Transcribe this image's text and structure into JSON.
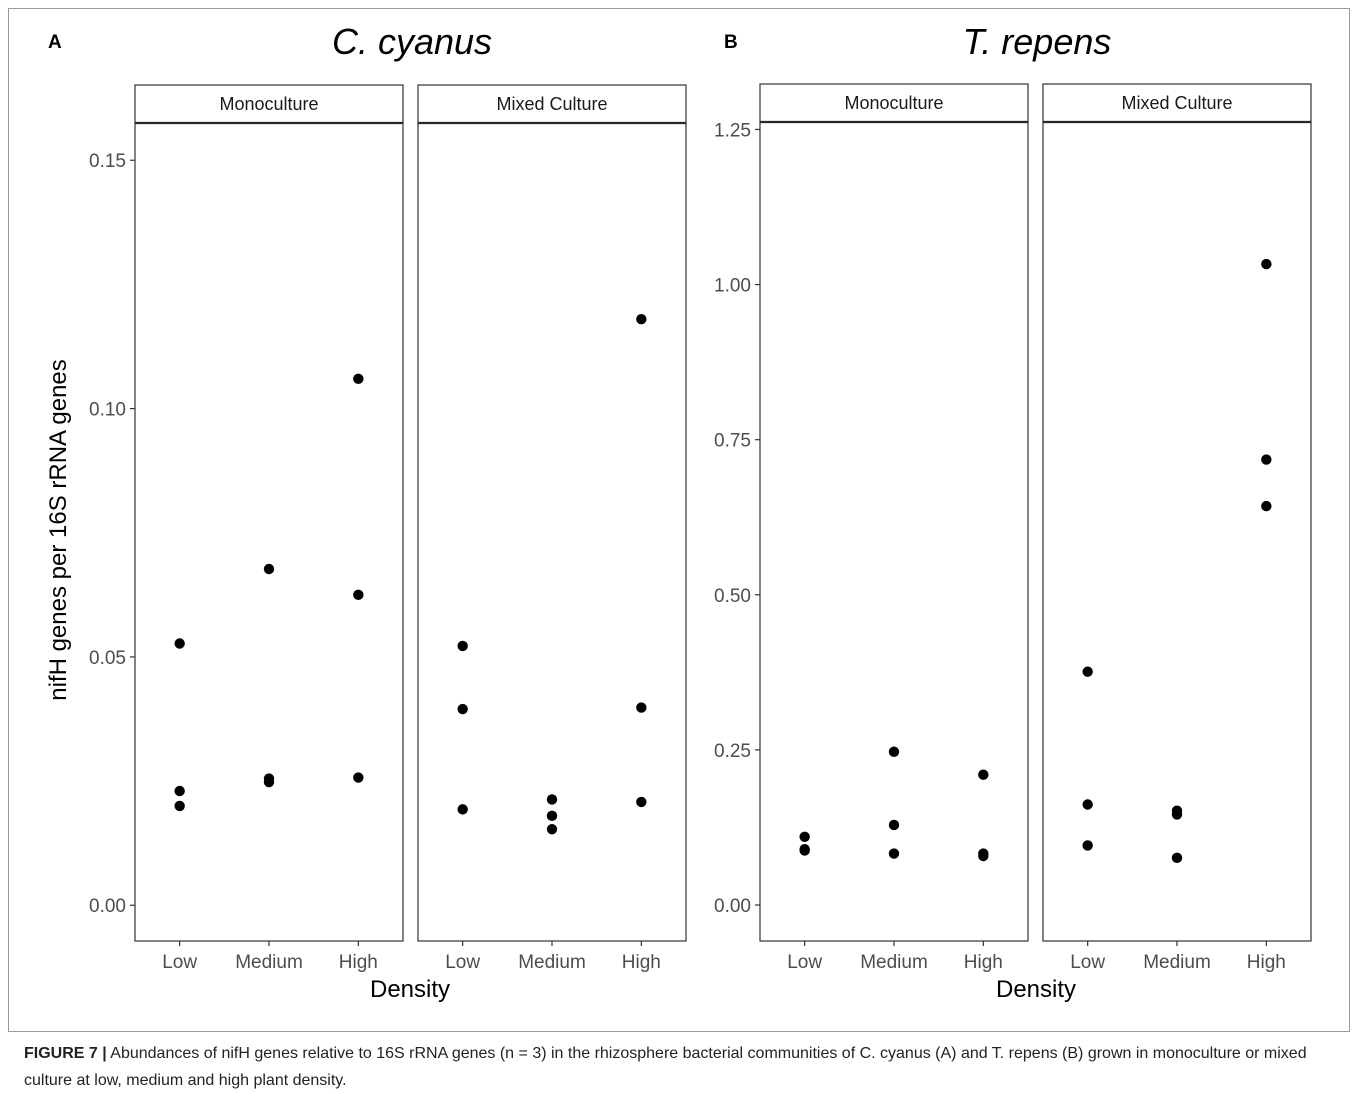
{
  "figure": {
    "caption": {
      "label": "FIGURE 7 |",
      "text": "Abundances of nifH genes relative to 16S rRNA genes (n = 3) in the rhizosphere bacterial communities of C. cyanus (A) and T. repens (B) grown in monoculture or mixed culture at low, medium and high plant density."
    },
    "colors": {
      "point": "#000000",
      "axis": "#333333",
      "frame": "#9a9a9a"
    }
  },
  "chart_data": [
    {
      "type": "scatter",
      "panel_label": "A",
      "title": "C. cyanus",
      "xlabel": "Density",
      "ylabel": "nifH genes per 16S rRNA genes",
      "ylim": [
        -0.0072,
        0.1575
      ],
      "yticks": [
        0.0,
        0.05,
        0.1,
        0.15
      ],
      "ytick_labels": [
        "0.00",
        "0.05",
        "0.10",
        "0.15"
      ],
      "categories": [
        "Low",
        "Medium",
        "High"
      ],
      "grid": false,
      "facets": [
        {
          "name": "Monoculture",
          "points": [
            {
              "x": "Low",
              "y": 0.0527
            },
            {
              "x": "Low",
              "y": 0.023
            },
            {
              "x": "Low",
              "y": 0.02
            },
            {
              "x": "Medium",
              "y": 0.0677
            },
            {
              "x": "Medium",
              "y": 0.0255
            },
            {
              "x": "Medium",
              "y": 0.0248
            },
            {
              "x": "High",
              "y": 0.106
            },
            {
              "x": "High",
              "y": 0.0625
            },
            {
              "x": "High",
              "y": 0.0257
            }
          ]
        },
        {
          "name": "Mixed Culture",
          "points": [
            {
              "x": "Low",
              "y": 0.0522
            },
            {
              "x": "Low",
              "y": 0.0395
            },
            {
              "x": "Low",
              "y": 0.0193
            },
            {
              "x": "Medium",
              "y": 0.0213
            },
            {
              "x": "Medium",
              "y": 0.018
            },
            {
              "x": "Medium",
              "y": 0.0153
            },
            {
              "x": "High",
              "y": 0.118
            },
            {
              "x": "High",
              "y": 0.0398
            },
            {
              "x": "High",
              "y": 0.0208
            }
          ]
        }
      ]
    },
    {
      "type": "scatter",
      "panel_label": "B",
      "title": "T. repens",
      "xlabel": "Density",
      "ylabel": "",
      "ylim": [
        -0.058,
        1.262
      ],
      "yticks": [
        0.0,
        0.25,
        0.5,
        0.75,
        1.0,
        1.25
      ],
      "ytick_labels": [
        "0.00",
        "0.25",
        "0.50",
        "0.75",
        "1.00",
        "1.25"
      ],
      "categories": [
        "Low",
        "Medium",
        "High"
      ],
      "grid": false,
      "facets": [
        {
          "name": "Monoculture",
          "points": [
            {
              "x": "Low",
              "y": 0.11
            },
            {
              "x": "Low",
              "y": 0.09
            },
            {
              "x": "Low",
              "y": 0.088
            },
            {
              "x": "Medium",
              "y": 0.247
            },
            {
              "x": "Medium",
              "y": 0.129
            },
            {
              "x": "Medium",
              "y": 0.083
            },
            {
              "x": "High",
              "y": 0.21
            },
            {
              "x": "High",
              "y": 0.083
            },
            {
              "x": "High",
              "y": 0.079
            }
          ]
        },
        {
          "name": "Mixed Culture",
          "points": [
            {
              "x": "Low",
              "y": 0.376
            },
            {
              "x": "Low",
              "y": 0.162
            },
            {
              "x": "Low",
              "y": 0.096
            },
            {
              "x": "Medium",
              "y": 0.152
            },
            {
              "x": "Medium",
              "y": 0.146
            },
            {
              "x": "Medium",
              "y": 0.076
            },
            {
              "x": "High",
              "y": 1.033
            },
            {
              "x": "High",
              "y": 0.718
            },
            {
              "x": "High",
              "y": 0.643
            }
          ]
        }
      ]
    }
  ]
}
